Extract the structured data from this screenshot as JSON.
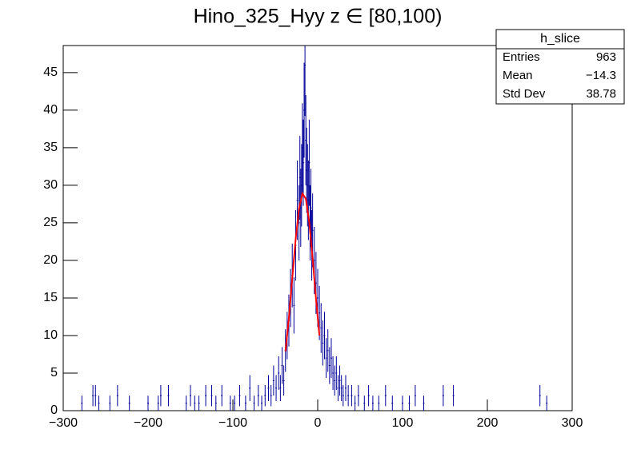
{
  "chart_data": {
    "type": "histogram",
    "title": "Hino_325_Hyy z  ∈ [80,100)",
    "xlim": [
      -300,
      300
    ],
    "ylim": [
      0,
      48.6
    ],
    "xticks": [
      {
        "value": -300,
        "label": "−300"
      },
      {
        "value": -200,
        "label": "−200"
      },
      {
        "value": -100,
        "label": "−100"
      },
      0,
      100,
      200,
      300
    ],
    "yticks": [
      0,
      5,
      10,
      15,
      20,
      25,
      30,
      35,
      40,
      45
    ],
    "series": [
      {
        "color": "#000099",
        "x": [
          -278,
          -265,
          -262,
          -258,
          -245,
          -236,
          -222,
          -200,
          -188,
          -185,
          -176,
          -155,
          -150,
          -145,
          -140,
          -132,
          -125,
          -120,
          -113,
          -103,
          -98,
          -92,
          -85,
          -80,
          -75,
          -70,
          -66,
          -62,
          -58,
          -55,
          -52,
          -49,
          -46,
          -44,
          -42,
          -40,
          -38,
          -36,
          -34,
          -32,
          -30,
          -28,
          -26,
          -24,
          -22,
          -21,
          -20,
          -19,
          -18,
          -17,
          -16,
          -15,
          -14,
          -13,
          -12,
          -11,
          -10,
          -9,
          -8,
          -7,
          -6,
          -4,
          -2,
          0,
          2,
          4,
          6,
          8,
          10,
          12,
          14,
          16,
          18,
          20,
          22,
          24,
          26,
          28,
          30,
          33,
          36,
          40,
          44,
          48,
          55,
          60,
          65,
          72,
          80,
          88,
          100,
          108,
          115,
          125,
          148,
          160,
          262,
          270
        ],
        "values": [
          1,
          2,
          2,
          1,
          1,
          2,
          1,
          1,
          1,
          2,
          2,
          1,
          2,
          1,
          1,
          2,
          2,
          1,
          2,
          1,
          1,
          2,
          1,
          3,
          1,
          2,
          1,
          2,
          3,
          2,
          4,
          3,
          5,
          3,
          6,
          4,
          8,
          10,
          12,
          15,
          18,
          14,
          22,
          28,
          25,
          31,
          27,
          30,
          35,
          33,
          40,
          46,
          36,
          32,
          30,
          28,
          33,
          25,
          27,
          22,
          24,
          20,
          17,
          15,
          13,
          11,
          9,
          10,
          7,
          8,
          6,
          7,
          5,
          4,
          5,
          3,
          4,
          3,
          2,
          3,
          2,
          2,
          1,
          2,
          1,
          2,
          1,
          1,
          2,
          1,
          1,
          1,
          2,
          1,
          2,
          2,
          2,
          1
        ],
        "errors": [
          1,
          1.41,
          1.41,
          1,
          1,
          1.41,
          1,
          1,
          1,
          1.41,
          1.41,
          1,
          1.41,
          1,
          1,
          1.41,
          1.41,
          1,
          1.41,
          1,
          1,
          1.41,
          1,
          1.73,
          1,
          1.41,
          1,
          1.41,
          1.73,
          1.41,
          2,
          1.73,
          2.24,
          1.73,
          2.45,
          2,
          2.83,
          3.16,
          3.46,
          3.87,
          4.24,
          3.74,
          4.69,
          5.29,
          5,
          5.57,
          5.2,
          5.48,
          5.92,
          5.74,
          6.32,
          6.78,
          6,
          5.66,
          5.48,
          5.29,
          5.74,
          5,
          5.2,
          4.69,
          4.9,
          4.47,
          4.12,
          3.87,
          3.61,
          3.32,
          3,
          3.16,
          2.65,
          2.83,
          2.45,
          2.65,
          2.24,
          2,
          2.24,
          1.73,
          2,
          1.73,
          1.41,
          1.73,
          1.41,
          1.41,
          1,
          1.41,
          1,
          1.41,
          1,
          1,
          1.41,
          1,
          1,
          1,
          1.41,
          1,
          1.41,
          1.41,
          1.41,
          1
        ]
      }
    ],
    "fit": {
      "color": "#ff0000",
      "x": [
        -38,
        -34,
        -30,
        -26,
        -22,
        -18,
        -14,
        -10,
        -6,
        -2,
        2
      ],
      "values": [
        7.9,
        12.3,
        17.6,
        22.8,
        26.9,
        28.9,
        28.2,
        25.1,
        20.3,
        14.9,
        10.0
      ]
    },
    "stats": {
      "title": "h_slice",
      "rows": [
        {
          "name": "Entries",
          "value": 963
        },
        {
          "name": "Mean",
          "value": -14.3,
          "label": "−14.3"
        },
        {
          "name": "Std Dev",
          "value": 38.78
        }
      ]
    }
  }
}
